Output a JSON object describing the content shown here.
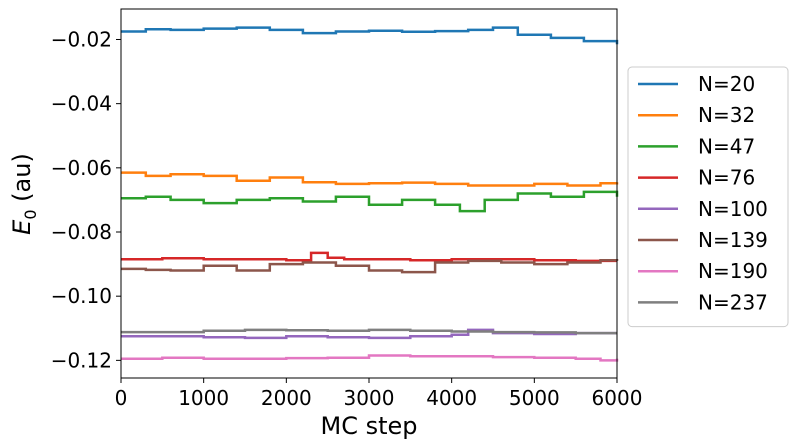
{
  "chart_data": {
    "type": "line",
    "xlabel": "MC step",
    "ylabel_main": "E",
    "ylabel_sub": "0",
    "ylabel_unit": " (au)",
    "xlim": [
      0,
      6000
    ],
    "ylim": [
      -0.1255,
      -0.0105
    ],
    "x_ticks": [
      0,
      1000,
      2000,
      3000,
      4000,
      5000,
      6000
    ],
    "x_tick_labels": [
      "0",
      "1000",
      "2000",
      "3000",
      "4000",
      "5000",
      "6000"
    ],
    "y_ticks": [
      -0.02,
      -0.04,
      -0.06,
      -0.08,
      -0.1,
      -0.12
    ],
    "y_tick_labels": [
      "−0.02",
      "−0.04",
      "−0.06",
      "−0.08",
      "−0.10",
      "−0.12"
    ],
    "grid": false,
    "legend_position": "right-outside",
    "series": [
      {
        "name": "N=20",
        "color": "#1f77b4",
        "x": [
          0,
          300,
          600,
          1000,
          1400,
          1800,
          2200,
          2600,
          3000,
          3400,
          3800,
          4200,
          4500,
          4800,
          5200,
          5600,
          6000
        ],
        "y": [
          -0.0175,
          -0.0168,
          -0.017,
          -0.0166,
          -0.0163,
          -0.017,
          -0.018,
          -0.0175,
          -0.0173,
          -0.0176,
          -0.0174,
          -0.017,
          -0.0163,
          -0.0185,
          -0.0195,
          -0.0205,
          -0.0215
        ]
      },
      {
        "name": "N=32",
        "color": "#ff7f0e",
        "x": [
          0,
          300,
          600,
          1000,
          1400,
          1800,
          2200,
          2600,
          3000,
          3400,
          3800,
          4200,
          4600,
          5000,
          5400,
          5800,
          6000
        ],
        "y": [
          -0.0615,
          -0.0625,
          -0.062,
          -0.0625,
          -0.064,
          -0.063,
          -0.0645,
          -0.065,
          -0.0648,
          -0.0646,
          -0.065,
          -0.0655,
          -0.0655,
          -0.065,
          -0.0655,
          -0.0648,
          -0.0645
        ]
      },
      {
        "name": "N=47",
        "color": "#2ca02c",
        "x": [
          0,
          300,
          600,
          1000,
          1400,
          1800,
          2200,
          2600,
          3000,
          3400,
          3800,
          4100,
          4400,
          4800,
          5200,
          5600,
          6000
        ],
        "y": [
          -0.0695,
          -0.069,
          -0.07,
          -0.071,
          -0.07,
          -0.0695,
          -0.0705,
          -0.069,
          -0.0715,
          -0.07,
          -0.0715,
          -0.0735,
          -0.07,
          -0.068,
          -0.069,
          -0.0675,
          -0.069
        ]
      },
      {
        "name": "N=76",
        "color": "#d62728",
        "x": [
          0,
          500,
          1000,
          1500,
          2000,
          2300,
          2400,
          2500,
          2700,
          3000,
          3500,
          4000,
          4500,
          5000,
          5500,
          6000
        ],
        "y": [
          -0.0885,
          -0.0882,
          -0.0885,
          -0.0885,
          -0.0888,
          -0.0865,
          -0.0865,
          -0.088,
          -0.0885,
          -0.0885,
          -0.0888,
          -0.0885,
          -0.0885,
          -0.0888,
          -0.089,
          -0.089
        ]
      },
      {
        "name": "N=100",
        "color": "#9467bd",
        "x": [
          0,
          500,
          1000,
          1500,
          2000,
          2500,
          3000,
          3500,
          4000,
          4200,
          4500,
          5000,
          5500,
          6000
        ],
        "y": [
          -0.1125,
          -0.1125,
          -0.1128,
          -0.113,
          -0.1125,
          -0.1128,
          -0.113,
          -0.1125,
          -0.112,
          -0.1105,
          -0.1115,
          -0.1118,
          -0.1115,
          -0.1115
        ]
      },
      {
        "name": "N=139",
        "color": "#8c564b",
        "x": [
          0,
          300,
          600,
          1000,
          1400,
          1800,
          2200,
          2600,
          3000,
          3400,
          3800,
          4200,
          4600,
          5000,
          5400,
          5800,
          6000
        ],
        "y": [
          -0.0915,
          -0.0918,
          -0.092,
          -0.0905,
          -0.092,
          -0.09,
          -0.0895,
          -0.0905,
          -0.092,
          -0.0925,
          -0.0895,
          -0.089,
          -0.0895,
          -0.09,
          -0.0895,
          -0.0888,
          -0.089
        ]
      },
      {
        "name": "N=190",
        "color": "#e377c2",
        "x": [
          0,
          500,
          1000,
          1500,
          2000,
          2500,
          3000,
          3500,
          4000,
          4500,
          5000,
          5500,
          5800,
          6000
        ],
        "y": [
          -0.1195,
          -0.1192,
          -0.1195,
          -0.1195,
          -0.1193,
          -0.1192,
          -0.1185,
          -0.1187,
          -0.1187,
          -0.119,
          -0.1192,
          -0.1195,
          -0.12,
          -0.1195
        ]
      },
      {
        "name": "N=237",
        "color": "#7f7f7f",
        "x": [
          0,
          500,
          1000,
          1500,
          2000,
          2500,
          3000,
          3500,
          4000,
          4500,
          5000,
          5500,
          6000
        ],
        "y": [
          -0.1112,
          -0.1112,
          -0.1108,
          -0.1105,
          -0.1106,
          -0.1108,
          -0.1105,
          -0.1108,
          -0.111,
          -0.1112,
          -0.1113,
          -0.1115,
          -0.1115
        ]
      }
    ]
  }
}
